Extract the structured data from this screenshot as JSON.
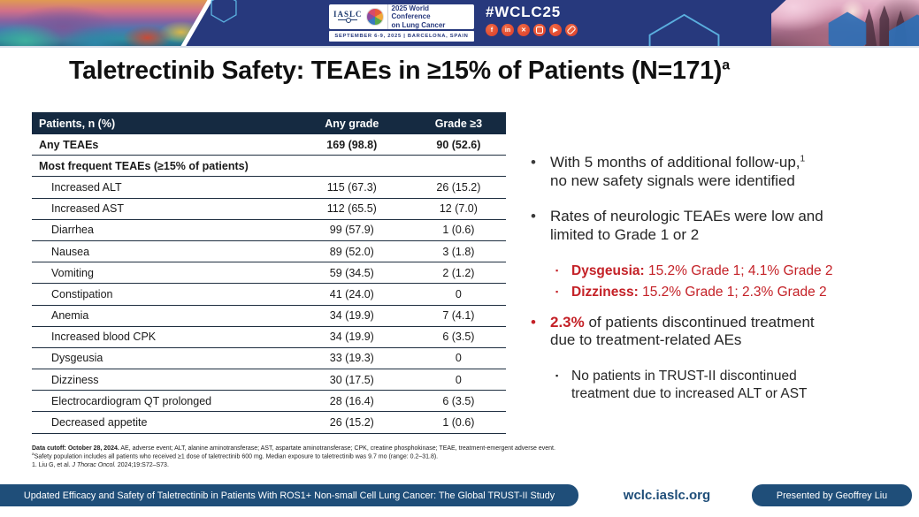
{
  "banner": {
    "iaslc_label": "IASLC",
    "conference_name": "2025 World Conference\non Lung Cancer",
    "date_location": "SEPTEMBER 6-9, 2025   |   BARCELONA, SPAIN",
    "hashtag": "#WCLC25",
    "social_icons": [
      "facebook-icon",
      "linkedin-icon",
      "x-icon",
      "instagram-icon",
      "youtube-icon",
      "link-icon"
    ]
  },
  "title": {
    "text": "Taletrectinib Safety: TEAEs in ≥15% of Patients (N=171)",
    "footnote_marker": "a"
  },
  "table": {
    "columns": [
      "Patients, n (%)",
      "Any grade",
      "Grade ≥3"
    ],
    "rows": [
      {
        "label": "Any TEAEs",
        "any_grade": "169 (98.8)",
        "grade_ge3": "90 (52.6)",
        "bold": true
      },
      {
        "label": "Most frequent TEAEs (≥15% of patients)",
        "section": true
      },
      {
        "label": "Increased ALT",
        "any_grade": "115 (67.3)",
        "grade_ge3": "26 (15.2)"
      },
      {
        "label": "Increased AST",
        "any_grade": "112 (65.5)",
        "grade_ge3": "12 (7.0)"
      },
      {
        "label": "Diarrhea",
        "any_grade": "99 (57.9)",
        "grade_ge3": "1 (0.6)"
      },
      {
        "label": "Nausea",
        "any_grade": "89 (52.0)",
        "grade_ge3": "3 (1.8)"
      },
      {
        "label": "Vomiting",
        "any_grade": "59 (34.5)",
        "grade_ge3": "2 (1.2)"
      },
      {
        "label": "Constipation",
        "any_grade": "41 (24.0)",
        "grade_ge3": "0"
      },
      {
        "label": "Anemia",
        "any_grade": "34 (19.9)",
        "grade_ge3": "7 (4.1)"
      },
      {
        "label": "Increased blood CPK",
        "any_grade": "34 (19.9)",
        "grade_ge3": "6 (3.5)"
      },
      {
        "label": "Dysgeusia",
        "any_grade": "33 (19.3)",
        "grade_ge3": "0"
      },
      {
        "label": "Dizziness",
        "any_grade": "30 (17.5)",
        "grade_ge3": "0"
      },
      {
        "label": "Electrocardiogram QT prolonged",
        "any_grade": "28 (16.4)",
        "grade_ge3": "6 (3.5)"
      },
      {
        "label": "Decreased appetite",
        "any_grade": "26 (15.2)",
        "grade_ge3": "1 (0.6)"
      }
    ]
  },
  "bullets": [
    {
      "type": "main",
      "marker": "dot",
      "segments": [
        {
          "text": "With 5 months of additional follow-up,"
        },
        {
          "text": "1",
          "sup": true
        },
        {
          "text": "\nno new safety signals were identified"
        }
      ]
    },
    {
      "type": "main",
      "marker": "dot",
      "segments": [
        {
          "text": "Rates of neurologic TEAEs were low and\nlimited to Grade 1 or 2"
        }
      ]
    },
    {
      "type": "sub-red",
      "marker": "square",
      "segments": [
        {
          "text": "Dysgeusia:",
          "bold": true
        },
        {
          "text": " 15.2% Grade 1; 4.1% Grade 2"
        }
      ]
    },
    {
      "type": "sub-red",
      "marker": "square",
      "segments": [
        {
          "text": "Dizziness:",
          "bold": true
        },
        {
          "text": " 15.2% Grade 1; 2.3% Grade 2"
        }
      ]
    },
    {
      "type": "main-red",
      "marker": "dot",
      "segments": [
        {
          "text": "2.3%",
          "bold": true,
          "red": true
        },
        {
          "text": " of patients discontinued treatment\ndue to treatment-related AEs"
        }
      ]
    },
    {
      "type": "sub",
      "marker": "square",
      "segments": [
        {
          "text": "No patients in TRUST-II discontinued\ntreatment due to increased ALT or AST"
        }
      ]
    }
  ],
  "footnotes": [
    {
      "segments": [
        {
          "text": "Data cutoff: October 28, 2024.",
          "bold": true
        },
        {
          "text": " AE, adverse event; ALT, alanine aminotransferase; AST, aspartate aminotransferase; CPK, creatine phosphokinase; TEAE, treatment-emergent adverse event."
        }
      ]
    },
    {
      "segments": [
        {
          "text": "a",
          "sup": true
        },
        {
          "text": "Safety population includes all patients who received ≥1 dose of taletrectinib 600 mg. Median exposure to taletrectinib was 9.7 mo (range: 0.2–31.8)."
        }
      ]
    },
    {
      "segments": [
        {
          "text": "1. Liu G, et al. "
        },
        {
          "text": "J Thorac Oncol.",
          "italic": true
        },
        {
          "text": " 2024;19:S72–S73."
        }
      ]
    }
  ],
  "footer": {
    "study_title": "Updated Efficacy and Safety of Taletrectinib in Patients With ROS1+ Non-small Cell Lung Cancer: The Global TRUST-II Study",
    "website": "wclc.iaslc.org",
    "presenter": "Presented by Geoffrey Liu"
  },
  "colors": {
    "accent_red": "#C42127",
    "banner_navy": "#27397D",
    "table_header_navy": "#152A41",
    "footer_navy": "#1F4E79"
  }
}
